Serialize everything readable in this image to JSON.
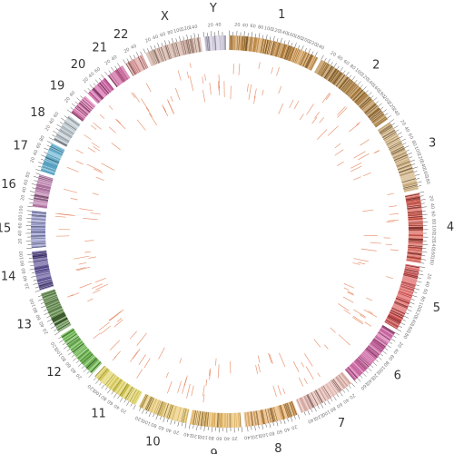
{
  "diagram": {
    "type": "circos-genome-plot",
    "chromosomes": [
      {
        "name": "1",
        "label": "1",
        "size": 249,
        "color": "#c88a3a"
      },
      {
        "name": "2",
        "label": "2",
        "size": 243,
        "color": "#a9752c"
      },
      {
        "name": "3",
        "label": "3",
        "size": 198,
        "color": "#c9a46b"
      },
      {
        "name": "4",
        "label": "4",
        "size": 191,
        "color": "#d2463a"
      },
      {
        "name": "5",
        "label": "5",
        "size": 181,
        "color": "#d94545"
      },
      {
        "name": "6",
        "label": "6",
        "size": 171,
        "color": "#d05aa0"
      },
      {
        "name": "7",
        "label": "7",
        "size": 159,
        "color": "#e3b0a8"
      },
      {
        "name": "8",
        "label": "8",
        "size": 146,
        "color": "#e1a356"
      },
      {
        "name": "9",
        "label": "9",
        "size": 141,
        "color": "#eab65a"
      },
      {
        "name": "10",
        "label": "10",
        "size": 136,
        "color": "#e7c25f"
      },
      {
        "name": "11",
        "label": "11",
        "size": 135,
        "color": "#dccc4a"
      },
      {
        "name": "12",
        "label": "12",
        "size": 134,
        "color": "#5fb43e"
      },
      {
        "name": "13",
        "label": "13",
        "size": 115,
        "color": "#4f7f35"
      },
      {
        "name": "14",
        "label": "14",
        "size": 107,
        "color": "#4b3b8a"
      },
      {
        "name": "15",
        "label": "15",
        "size": 102,
        "color": "#8c8fc8"
      },
      {
        "name": "16",
        "label": "16",
        "size": 90,
        "color": "#b06aa0"
      },
      {
        "name": "17",
        "label": "17",
        "size": 81,
        "color": "#4fa8cc"
      },
      {
        "name": "18",
        "label": "18",
        "size": 78,
        "color": "#b6c3cc"
      },
      {
        "name": "19",
        "label": "19",
        "size": 59,
        "color": "#d862a6"
      },
      {
        "name": "20",
        "label": "20",
        "size": 63,
        "color": "#cf4f9c"
      },
      {
        "name": "21",
        "label": "21",
        "size": 48,
        "color": "#c34c8c"
      },
      {
        "name": "22",
        "label": "22",
        "size": 51,
        "color": "#d98a8a"
      },
      {
        "name": "X",
        "label": "X",
        "size": 155,
        "color": "#c8a090"
      },
      {
        "name": "Y",
        "label": "Y",
        "size": 59,
        "color": "#c9c2d8"
      }
    ],
    "tick_step": 20,
    "link_color": "#e06a3a",
    "colors": {
      "background": "#ffffff",
      "label": "#333333",
      "tick": "#555555"
    }
  }
}
